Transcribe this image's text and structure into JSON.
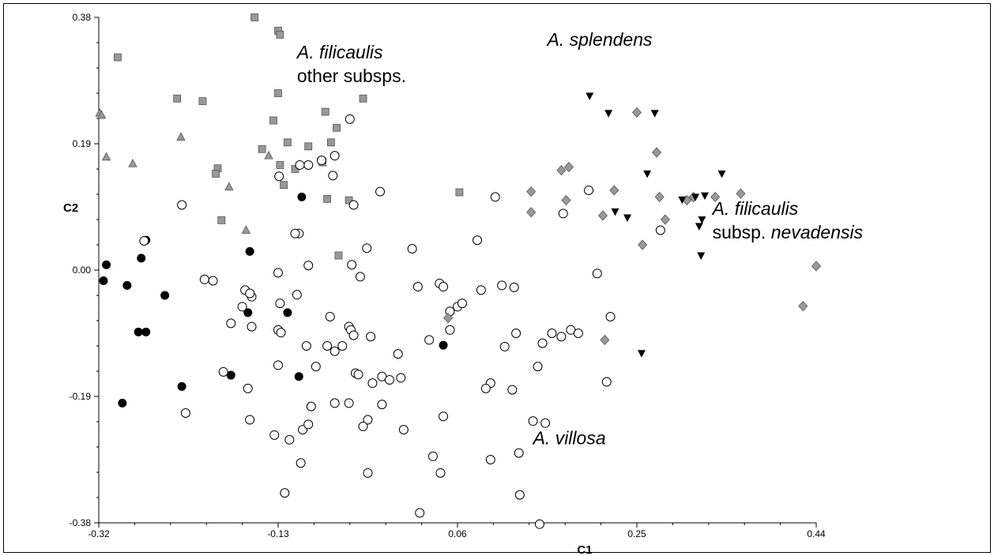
{
  "chart_data": {
    "type": "scatter",
    "xlabel": "C1",
    "ylabel": "C2",
    "xlim": [
      -0.32,
      0.44
    ],
    "ylim": [
      -0.38,
      0.38
    ],
    "x_ticks": [
      "-0.32",
      "-0.13",
      "0.06",
      "0.25",
      "0.44"
    ],
    "y_ticks": [
      "0.38",
      "0.19",
      "0.00",
      "-0.19",
      "-0.38"
    ],
    "grid": false,
    "legend": "none",
    "annotations": [
      {
        "parts": [
          {
            "t": "A. filicaulis",
            "italic": true
          }
        ],
        "line2": [
          {
            "t": "other subsps.",
            "italic": false
          }
        ],
        "x": -0.11,
        "y": 0.318
      },
      {
        "parts": [
          {
            "t": "A. splendens",
            "italic": true
          }
        ],
        "x": 0.155,
        "y": 0.337
      },
      {
        "parts": [
          {
            "t": "A. filicaulis",
            "italic": true
          }
        ],
        "line2": [
          {
            "t": "subsp. ",
            "italic": false
          },
          {
            "t": "nevadensis",
            "italic": true
          }
        ],
        "x": 0.33,
        "y": 0.083
      },
      {
        "parts": [
          {
            "t": "A. villosa",
            "italic": true
          }
        ],
        "x": 0.14,
        "y": -0.262
      }
    ],
    "series": [
      {
        "marker": "square",
        "color": "#999999",
        "points": [
          [
            -0.3,
            0.32
          ],
          [
            -0.155,
            0.38
          ],
          [
            -0.13,
            0.36
          ],
          [
            -0.128,
            0.354
          ],
          [
            -0.13,
            0.266
          ],
          [
            -0.237,
            0.258
          ],
          [
            -0.21,
            0.254
          ],
          [
            -0.135,
            0.225
          ],
          [
            -0.08,
            0.238
          ],
          [
            -0.04,
            0.258
          ],
          [
            -0.12,
            0.192
          ],
          [
            -0.147,
            0.182
          ],
          [
            -0.098,
            0.186
          ],
          [
            -0.074,
            0.192
          ],
          [
            -0.068,
            0.214
          ],
          [
            -0.083,
            0.162
          ],
          [
            -0.128,
            0.158
          ],
          [
            -0.112,
            0.152
          ],
          [
            -0.194,
            0.153
          ],
          [
            -0.196,
            0.145
          ],
          [
            -0.124,
            0.128
          ],
          [
            -0.078,
            0.107
          ],
          [
            -0.055,
            0.105
          ],
          [
            -0.19,
            0.075
          ],
          [
            -0.066,
            0.022
          ],
          [
            0.062,
            0.117
          ]
        ]
      },
      {
        "marker": "triangle-up",
        "color": "#999999",
        "points": [
          [
            -0.319,
            0.236
          ],
          [
            -0.317,
            0.233
          ],
          [
            -0.312,
            0.17
          ],
          [
            -0.284,
            0.16
          ],
          [
            -0.233,
            0.2
          ],
          [
            -0.182,
            0.125
          ],
          [
            -0.14,
            0.172
          ],
          [
            -0.164,
            0.06
          ]
        ]
      },
      {
        "marker": "circle",
        "color": "#000000",
        "points": [
          [
            -0.312,
            0.008
          ],
          [
            -0.315,
            -0.016
          ],
          [
            -0.27,
            0.045
          ],
          [
            -0.275,
            0.018
          ],
          [
            -0.29,
            -0.023
          ],
          [
            -0.25,
            -0.038
          ],
          [
            -0.278,
            -0.093
          ],
          [
            -0.27,
            -0.093
          ],
          [
            -0.16,
            0.028
          ],
          [
            -0.105,
            0.11
          ],
          [
            -0.162,
            -0.064
          ],
          [
            -0.12,
            -0.064
          ],
          [
            -0.18,
            -0.158
          ],
          [
            -0.108,
            -0.16
          ],
          [
            -0.232,
            -0.175
          ],
          [
            -0.295,
            -0.2
          ],
          [
            0.045,
            -0.113
          ]
        ]
      },
      {
        "marker": "circle-open",
        "color": "#000000",
        "points": [
          [
            -0.054,
            0.227
          ],
          [
            -0.07,
            0.172
          ],
          [
            -0.098,
            0.158
          ],
          [
            -0.084,
            0.165
          ],
          [
            -0.107,
            0.158
          ],
          [
            -0.129,
            0.141
          ],
          [
            -0.072,
            0.142
          ],
          [
            -0.022,
            0.118
          ],
          [
            -0.05,
            0.098
          ],
          [
            -0.232,
            0.098
          ],
          [
            -0.108,
            0.055
          ],
          [
            -0.112,
            0.055
          ],
          [
            -0.272,
            0.044
          ],
          [
            -0.036,
            0.033
          ],
          [
            0.012,
            0.032
          ],
          [
            0.081,
            0.045
          ],
          [
            0.1,
            0.11
          ],
          [
            0.172,
            0.085
          ],
          [
            0.199,
            0.12
          ],
          [
            0.275,
            0.06
          ],
          [
            -0.098,
            0.007
          ],
          [
            -0.052,
            0.008
          ],
          [
            -0.13,
            -0.004
          ],
          [
            -0.043,
            -0.01
          ],
          [
            -0.208,
            -0.014
          ],
          [
            -0.199,
            -0.016
          ],
          [
            -0.165,
            -0.03
          ],
          [
            -0.158,
            -0.04
          ],
          [
            -0.16,
            -0.035
          ],
          [
            -0.128,
            -0.05
          ],
          [
            -0.11,
            -0.037
          ],
          [
            -0.168,
            -0.055
          ],
          [
            -0.158,
            -0.085
          ],
          [
            -0.18,
            -0.08
          ],
          [
            -0.13,
            -0.09
          ],
          [
            -0.127,
            -0.094
          ],
          [
            -0.075,
            -0.07
          ],
          [
            -0.055,
            -0.085
          ],
          [
            -0.053,
            -0.09
          ],
          [
            -0.05,
            -0.098
          ],
          [
            -0.1,
            -0.114
          ],
          [
            -0.078,
            -0.114
          ],
          [
            -0.07,
            -0.122
          ],
          [
            -0.062,
            -0.114
          ],
          [
            -0.032,
            -0.1
          ],
          [
            -0.003,
            -0.126
          ],
          [
            0.018,
            -0.025
          ],
          [
            0.041,
            -0.02
          ],
          [
            0.045,
            -0.025
          ],
          [
            0.052,
            -0.062
          ],
          [
            0.06,
            -0.055
          ],
          [
            0.065,
            -0.05
          ],
          [
            0.085,
            -0.03
          ],
          [
            0.107,
            -0.023
          ],
          [
            0.12,
            -0.026
          ],
          [
            0.145,
            -0.145
          ],
          [
            0.11,
            -0.115
          ],
          [
            0.122,
            -0.095
          ],
          [
            0.15,
            -0.11
          ],
          [
            0.16,
            -0.095
          ],
          [
            0.17,
            -0.1
          ],
          [
            0.18,
            -0.09
          ],
          [
            0.188,
            -0.095
          ],
          [
            0.208,
            -0.005
          ],
          [
            0.222,
            -0.07
          ],
          [
            0.218,
            -0.168
          ],
          [
            0.052,
            -0.09
          ],
          [
            0.03,
            -0.105
          ],
          [
            -0.13,
            -0.143
          ],
          [
            -0.09,
            -0.145
          ],
          [
            -0.048,
            -0.155
          ],
          [
            -0.045,
            -0.157
          ],
          [
            -0.02,
            -0.16
          ],
          [
            -0.012,
            -0.165
          ],
          [
            0.0,
            -0.162
          ],
          [
            -0.03,
            -0.17
          ],
          [
            0.095,
            -0.17
          ],
          [
            0.09,
            -0.178
          ],
          [
            0.118,
            -0.18
          ],
          [
            -0.188,
            -0.153
          ],
          [
            -0.162,
            -0.178
          ],
          [
            -0.07,
            -0.2
          ],
          [
            -0.055,
            -0.2
          ],
          [
            -0.02,
            -0.202
          ],
          [
            -0.228,
            -0.215
          ],
          [
            -0.16,
            -0.225
          ],
          [
            -0.095,
            -0.205
          ],
          [
            -0.035,
            -0.225
          ],
          [
            -0.04,
            -0.235
          ],
          [
            0.003,
            -0.24
          ],
          [
            0.045,
            -0.22
          ],
          [
            0.14,
            -0.227
          ],
          [
            0.153,
            -0.23
          ],
          [
            -0.134,
            -0.248
          ],
          [
            -0.118,
            -0.255
          ],
          [
            -0.104,
            -0.24
          ],
          [
            -0.098,
            -0.232
          ],
          [
            -0.106,
            -0.29
          ],
          [
            0.034,
            -0.28
          ],
          [
            0.095,
            -0.285
          ],
          [
            0.125,
            -0.275
          ],
          [
            -0.035,
            -0.305
          ],
          [
            0.042,
            -0.305
          ],
          [
            -0.123,
            -0.335
          ],
          [
            0.126,
            -0.338
          ],
          [
            0.02,
            -0.365
          ],
          [
            0.147,
            -0.382
          ]
        ]
      },
      {
        "marker": "diamond",
        "color": "#999999",
        "points": [
          [
            0.25,
            0.237
          ],
          [
            0.271,
            0.177
          ],
          [
            0.17,
            0.15
          ],
          [
            0.178,
            0.155
          ],
          [
            0.138,
            0.118
          ],
          [
            0.226,
            0.12
          ],
          [
            0.175,
            0.105
          ],
          [
            0.274,
            0.11
          ],
          [
            0.303,
            0.105
          ],
          [
            0.31,
            0.11
          ],
          [
            0.333,
            0.11
          ],
          [
            0.36,
            0.115
          ],
          [
            0.138,
            0.087
          ],
          [
            0.214,
            0.082
          ],
          [
            0.28,
            0.076
          ],
          [
            0.256,
            0.038
          ],
          [
            0.44,
            0.006
          ],
          [
            0.426,
            -0.054
          ],
          [
            0.05,
            -0.072
          ],
          [
            0.216,
            -0.105
          ]
        ]
      },
      {
        "marker": "triangle-down",
        "color": "#000000",
        "points": [
          [
            0.2,
            0.262
          ],
          [
            0.22,
            0.236
          ],
          [
            0.269,
            0.236
          ],
          [
            0.261,
            0.145
          ],
          [
            0.34,
            0.145
          ],
          [
            0.298,
            0.106
          ],
          [
            0.322,
            0.112
          ],
          [
            0.312,
            0.11
          ],
          [
            0.227,
            0.088
          ],
          [
            0.24,
            0.079
          ],
          [
            0.316,
            0.066
          ],
          [
            0.319,
            0.076
          ],
          [
            0.318,
            0.022
          ],
          [
            0.255,
            -0.125
          ]
        ]
      }
    ]
  }
}
